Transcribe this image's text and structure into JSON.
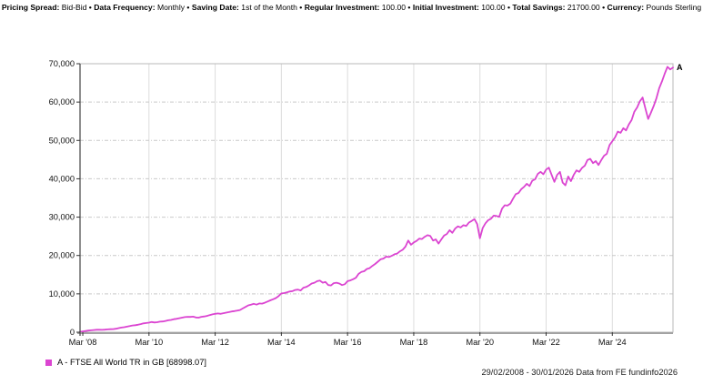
{
  "header": {
    "separator": "•",
    "items": [
      {
        "label": "Pricing Spread:",
        "value": "Bid-Bid"
      },
      {
        "label": "Data Frequency:",
        "value": "Monthly"
      },
      {
        "label": "Saving Date:",
        "value": "1st of the Month"
      },
      {
        "label": "Regular Investment:",
        "value": "100.00"
      },
      {
        "label": "Initial Investment:",
        "value": "100.00"
      },
      {
        "label": "Total Savings:",
        "value": "21700.00"
      },
      {
        "label": "Currency:",
        "value": "Pounds Sterling"
      }
    ]
  },
  "chart_data": {
    "type": "line",
    "title": "",
    "xlabel": "",
    "ylabel": "",
    "ylim": [
      0,
      70000
    ],
    "y_ticks": [
      0,
      10000,
      20000,
      30000,
      40000,
      50000,
      60000,
      70000
    ],
    "y_tick_labels": [
      "0",
      "10,000",
      "20,000",
      "30,000",
      "40,000",
      "50,000",
      "60,000",
      "70,000"
    ],
    "x_ticks": [
      {
        "label": "Mar '08",
        "month_index": 1
      },
      {
        "label": "Mar '10",
        "month_index": 25
      },
      {
        "label": "Mar '12",
        "month_index": 49
      },
      {
        "label": "Mar '14",
        "month_index": 73
      },
      {
        "label": "Mar '16",
        "month_index": 97
      },
      {
        "label": "Mar '18",
        "month_index": 121
      },
      {
        "label": "Mar '20",
        "month_index": 145
      },
      {
        "label": "Mar '22",
        "month_index": 169
      },
      {
        "label": "Mar '24",
        "month_index": 193
      }
    ],
    "grid": {
      "horizontal": "dash-dot",
      "vertical": "solid",
      "legend_position": "bottom-left"
    },
    "end_label": "A",
    "series": [
      {
        "name": "A - FTSE All World TR in GB [68998.07]",
        "color": "#db45d1",
        "start": "2008-02",
        "end": "2026-01",
        "frequency": "monthly",
        "final_value": 68998.07,
        "values": [
          100,
          210,
          320,
          430,
          500,
          560,
          650,
          640,
          610,
          660,
          740,
          790,
          800,
          900,
          1060,
          1200,
          1300,
          1450,
          1600,
          1750,
          1820,
          1950,
          2100,
          2300,
          2400,
          2500,
          2650,
          2550,
          2600,
          2750,
          2800,
          2950,
          3100,
          3200,
          3400,
          3500,
          3650,
          3800,
          3950,
          4000,
          3980,
          4050,
          3850,
          3800,
          4000,
          4100,
          4250,
          4450,
          4650,
          4800,
          4900,
          4800,
          4950,
          5100,
          5250,
          5400,
          5500,
          5650,
          5800,
          6200,
          6600,
          7000,
          7200,
          7400,
          7200,
          7500,
          7450,
          7700,
          8000,
          8300,
          8600,
          8900,
          9400,
          10100,
          10200,
          10400,
          10600,
          10700,
          11000,
          11100,
          10900,
          11600,
          11800,
          12200,
          12700,
          12900,
          13300,
          13450,
          12900,
          13100,
          12300,
          12200,
          12800,
          12900,
          12700,
          12300,
          12500,
          13300,
          13500,
          13800,
          14200,
          15200,
          15700,
          15900,
          16500,
          16700,
          17300,
          17800,
          18400,
          19000,
          19200,
          19700,
          19600,
          19900,
          20300,
          20500,
          21100,
          21500,
          22300,
          23900,
          22800,
          23400,
          23800,
          24400,
          24300,
          24900,
          25300,
          25100,
          23900,
          24200,
          23100,
          24200,
          25200,
          25600,
          26600,
          25900,
          27000,
          27600,
          27300,
          27900,
          27700,
          28600,
          29000,
          29500,
          28200,
          24500,
          27200,
          28400,
          29200,
          29600,
          30400,
          30300,
          30100,
          32200,
          33100,
          33000,
          33500,
          34800,
          36000,
          36300,
          37300,
          37900,
          38700,
          38100,
          39500,
          39900,
          41300,
          41800,
          41200,
          42400,
          42900,
          41000,
          39200,
          41000,
          41800,
          39000,
          38300,
          40600,
          39400,
          41000,
          42200,
          41800,
          42800,
          43400,
          44900,
          45200,
          44100,
          44600,
          43600,
          44900,
          46000,
          46500,
          48800,
          49800,
          50800,
          52300,
          52000,
          53200,
          52600,
          54200,
          55300,
          57500,
          58600,
          60200,
          61200,
          58300,
          55600,
          57200,
          59000,
          61000,
          63600,
          65400,
          67400,
          69200,
          68500,
          68998.07
        ]
      }
    ]
  },
  "legend": {
    "items": [
      {
        "marker_color": "#db45d1",
        "label": "A - FTSE All World TR in GB [68998.07]"
      }
    ]
  },
  "footer": {
    "text": "29/02/2008 - 30/01/2026 Data from FE fundinfo2026"
  },
  "colors": {
    "line": "#db45d1",
    "grid_horizontal": "#c9c9c9",
    "grid_vertical": "#dcdcdc",
    "plot_border": "#b8b8b8",
    "y_axis": "#444444",
    "x_axis_band": "#a3a3a3",
    "tick": "#333333",
    "label_text": "#111111"
  }
}
